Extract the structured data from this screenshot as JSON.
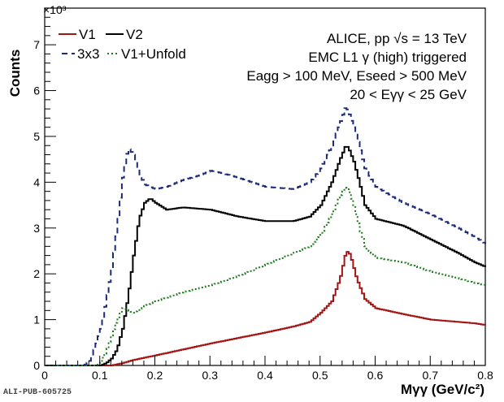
{
  "chart_data": {
    "type": "line",
    "drawstyle": "steps",
    "ylabel": "Counts",
    "y_multiplier": "×10³",
    "xlabel": "Mγγ (GeV/c²)",
    "xlim": [
      0,
      0.8
    ],
    "ylim": [
      0,
      7800
    ],
    "x_ticks": [
      0,
      0.1,
      0.2,
      0.3,
      0.4,
      0.5,
      0.6,
      0.7,
      0.8
    ],
    "x_tick_labels": [
      "0",
      "0.1",
      "0.2",
      "0.3",
      "0.4",
      "0.5",
      "0.6",
      "0.7",
      "0.8"
    ],
    "y_ticks": [
      0,
      1000,
      2000,
      3000,
      4000,
      5000,
      6000,
      7000
    ],
    "y_tick_labels": [
      "0",
      "1",
      "2",
      "3",
      "4",
      "5",
      "6",
      "7"
    ],
    "legend_position": "top-left",
    "series": [
      {
        "name": "V1",
        "color": "#a31515",
        "dash": "solid",
        "points": [
          [
            0,
            0
          ],
          [
            0.1,
            0
          ],
          [
            0.12,
            0
          ],
          [
            0.14,
            50
          ],
          [
            0.16,
            120
          ],
          [
            0.18,
            170
          ],
          [
            0.2,
            220
          ],
          [
            0.25,
            350
          ],
          [
            0.3,
            480
          ],
          [
            0.35,
            600
          ],
          [
            0.4,
            720
          ],
          [
            0.45,
            850
          ],
          [
            0.48,
            950
          ],
          [
            0.5,
            1150
          ],
          [
            0.52,
            1400
          ],
          [
            0.535,
            1900
          ],
          [
            0.545,
            2450
          ],
          [
            0.55,
            2500
          ],
          [
            0.555,
            2350
          ],
          [
            0.565,
            1900
          ],
          [
            0.58,
            1450
          ],
          [
            0.6,
            1250
          ],
          [
            0.65,
            1120
          ],
          [
            0.7,
            1000
          ],
          [
            0.75,
            950
          ],
          [
            0.78,
            920
          ],
          [
            0.8,
            880
          ]
        ]
      },
      {
        "name": "V2",
        "color": "#000000",
        "dash": "solid",
        "points": [
          [
            0,
            0
          ],
          [
            0.1,
            0
          ],
          [
            0.11,
            50
          ],
          [
            0.12,
            150
          ],
          [
            0.13,
            350
          ],
          [
            0.14,
            800
          ],
          [
            0.15,
            1500
          ],
          [
            0.16,
            2400
          ],
          [
            0.17,
            3200
          ],
          [
            0.18,
            3550
          ],
          [
            0.19,
            3650
          ],
          [
            0.2,
            3550
          ],
          [
            0.22,
            3400
          ],
          [
            0.25,
            3450
          ],
          [
            0.3,
            3400
          ],
          [
            0.35,
            3250
          ],
          [
            0.4,
            3150
          ],
          [
            0.45,
            3150
          ],
          [
            0.48,
            3250
          ],
          [
            0.5,
            3500
          ],
          [
            0.52,
            4000
          ],
          [
            0.535,
            4500
          ],
          [
            0.545,
            4800
          ],
          [
            0.55,
            4750
          ],
          [
            0.56,
            4450
          ],
          [
            0.57,
            4000
          ],
          [
            0.58,
            3500
          ],
          [
            0.6,
            3200
          ],
          [
            0.65,
            3050
          ],
          [
            0.7,
            2750
          ],
          [
            0.75,
            2450
          ],
          [
            0.78,
            2250
          ],
          [
            0.8,
            2150
          ]
        ]
      },
      {
        "name": "3x3",
        "color": "#1c2a7a",
        "dash": "7,5",
        "points": [
          [
            0,
            0
          ],
          [
            0.07,
            0
          ],
          [
            0.08,
            100
          ],
          [
            0.09,
            400
          ],
          [
            0.1,
            800
          ],
          [
            0.11,
            1400
          ],
          [
            0.12,
            2100
          ],
          [
            0.13,
            3000
          ],
          [
            0.14,
            4100
          ],
          [
            0.15,
            4750
          ],
          [
            0.16,
            4600
          ],
          [
            0.17,
            4200
          ],
          [
            0.18,
            3950
          ],
          [
            0.2,
            3850
          ],
          [
            0.22,
            3900
          ],
          [
            0.25,
            4050
          ],
          [
            0.28,
            4150
          ],
          [
            0.3,
            4250
          ],
          [
            0.32,
            4200
          ],
          [
            0.35,
            4100
          ],
          [
            0.4,
            3900
          ],
          [
            0.45,
            3850
          ],
          [
            0.48,
            4000
          ],
          [
            0.5,
            4300
          ],
          [
            0.52,
            4800
          ],
          [
            0.535,
            5300
          ],
          [
            0.545,
            5650
          ],
          [
            0.55,
            5550
          ],
          [
            0.56,
            5200
          ],
          [
            0.57,
            4800
          ],
          [
            0.58,
            4300
          ],
          [
            0.6,
            3900
          ],
          [
            0.65,
            3550
          ],
          [
            0.7,
            3300
          ],
          [
            0.75,
            3000
          ],
          [
            0.78,
            2800
          ],
          [
            0.8,
            2650
          ]
        ]
      },
      {
        "name": "V1+Unfold",
        "color": "#1d7a1d",
        "dash": "2,3",
        "points": [
          [
            0,
            0
          ],
          [
            0.09,
            0
          ],
          [
            0.1,
            80
          ],
          [
            0.11,
            300
          ],
          [
            0.12,
            650
          ],
          [
            0.13,
            1000
          ],
          [
            0.14,
            1250
          ],
          [
            0.15,
            1200
          ],
          [
            0.16,
            1150
          ],
          [
            0.18,
            1300
          ],
          [
            0.2,
            1400
          ],
          [
            0.25,
            1600
          ],
          [
            0.3,
            1750
          ],
          [
            0.35,
            1950
          ],
          [
            0.4,
            2200
          ],
          [
            0.45,
            2450
          ],
          [
            0.48,
            2600
          ],
          [
            0.5,
            2850
          ],
          [
            0.52,
            3300
          ],
          [
            0.535,
            3700
          ],
          [
            0.545,
            3900
          ],
          [
            0.55,
            3850
          ],
          [
            0.56,
            3500
          ],
          [
            0.57,
            3000
          ],
          [
            0.58,
            2600
          ],
          [
            0.6,
            2350
          ],
          [
            0.65,
            2250
          ],
          [
            0.7,
            2050
          ],
          [
            0.75,
            1900
          ],
          [
            0.78,
            1800
          ],
          [
            0.8,
            1750
          ]
        ]
      }
    ],
    "legend": [
      {
        "label": "V1",
        "color": "#a31515",
        "dash": "solid"
      },
      {
        "label": "V2",
        "color": "#000000",
        "dash": "solid"
      },
      {
        "label": "3x3",
        "color": "#1c2a7a",
        "dash": "7,5"
      },
      {
        "label": "V1+Unfold",
        "color": "#1d7a1d",
        "dash": "2,3"
      }
    ],
    "annotations": [
      "ALICE, pp  √s = 13 TeV",
      "EMC L1 γ (high) triggered",
      "Eagg > 100 MeV, Eseed > 500 MeV",
      "20 < Eγγ < 25 GeV"
    ]
  },
  "footer": {
    "publication_id": "ALI-PUB-605725"
  }
}
